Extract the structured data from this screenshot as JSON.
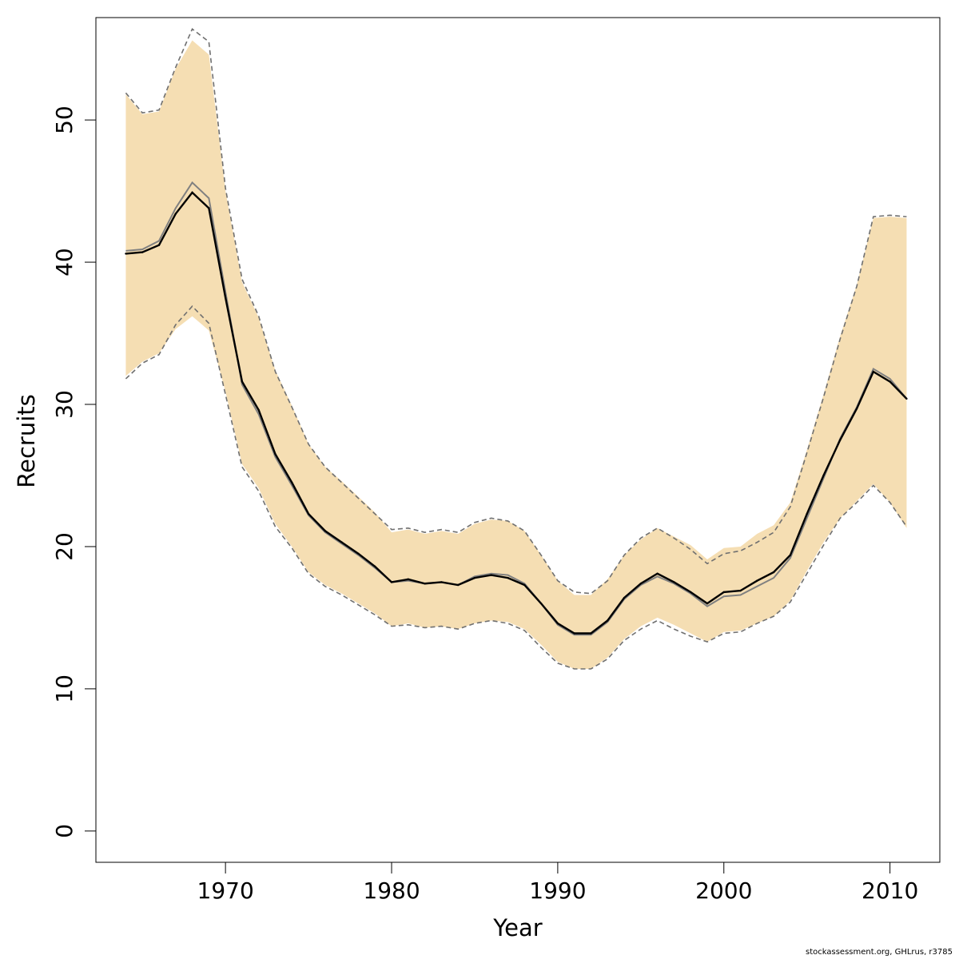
{
  "chart_data": {
    "type": "line",
    "xlabel": "Year",
    "ylabel": "Recruits",
    "xlim": [
      1962.2,
      2013.0
    ],
    "ylim": [
      -2.2,
      57.2
    ],
    "x_ticks": [
      1970,
      1980,
      1990,
      2000,
      2010
    ],
    "y_ticks": [
      0,
      10,
      20,
      30,
      40,
      50
    ],
    "grid": false,
    "legend": "none",
    "colors": {
      "band": "#f5deb3",
      "estimate": "#000000",
      "alt_estimate": "#808080",
      "alt_bounds": "#707070"
    },
    "x": [
      1964,
      1965,
      1966,
      1967,
      1968,
      1969,
      1970,
      1971,
      1972,
      1973,
      1974,
      1975,
      1976,
      1977,
      1978,
      1979,
      1980,
      1981,
      1982,
      1983,
      1984,
      1985,
      1986,
      1987,
      1988,
      1989,
      1990,
      1991,
      1992,
      1993,
      1994,
      1995,
      1996,
      1997,
      1998,
      1999,
      2000,
      2001,
      2002,
      2003,
      2004,
      2005,
      2006,
      2007,
      2008,
      2009,
      2010,
      2011
    ],
    "series": [
      {
        "role": "estimate",
        "values": [
          40.6,
          40.7,
          41.2,
          43.4,
          44.9,
          43.8,
          37.5,
          31.6,
          29.6,
          26.5,
          24.5,
          22.3,
          21.1,
          20.3,
          19.5,
          18.6,
          17.5,
          17.7,
          17.4,
          17.5,
          17.3,
          17.8,
          18.0,
          17.8,
          17.3,
          16.0,
          14.6,
          13.9,
          13.9,
          14.8,
          16.4,
          17.4,
          18.1,
          17.5,
          16.8,
          16.0,
          16.8,
          16.9,
          17.6,
          18.2,
          19.4,
          22.3,
          25.0,
          27.5,
          29.7,
          32.3,
          31.6,
          30.4
        ]
      },
      {
        "role": "estimate_lower_95",
        "values": [
          32.0,
          33.0,
          33.6,
          35.3,
          36.2,
          35.2,
          30.9,
          25.8,
          24.1,
          21.6,
          20.0,
          18.2,
          17.3,
          16.7,
          16.0,
          15.3,
          14.4,
          14.6,
          14.3,
          14.4,
          14.2,
          14.6,
          14.8,
          14.7,
          14.2,
          13.1,
          11.9,
          11.4,
          11.4,
          12.2,
          13.5,
          14.4,
          15.0,
          14.5,
          13.9,
          13.3,
          14.0,
          14.1,
          14.6,
          15.1,
          16.2,
          18.3,
          20.3,
          22.0,
          23.2,
          24.4,
          23.1,
          21.3
        ]
      },
      {
        "role": "estimate_upper_95",
        "values": [
          51.8,
          50.4,
          50.6,
          53.6,
          55.6,
          54.6,
          45.0,
          38.6,
          36.1,
          32.4,
          29.9,
          27.2,
          25.6,
          24.6,
          23.5,
          22.4,
          21.0,
          21.2,
          20.9,
          21.1,
          20.9,
          21.6,
          21.9,
          21.8,
          21.1,
          19.4,
          17.6,
          16.6,
          16.6,
          17.7,
          19.4,
          20.5,
          21.3,
          20.7,
          20.1,
          19.1,
          19.9,
          20.0,
          20.9,
          21.5,
          23.1,
          26.8,
          30.7,
          34.8,
          38.4,
          43.1,
          43.2,
          43.1
        ]
      },
      {
        "role": "alt_estimate",
        "values": [
          40.8,
          40.9,
          41.5,
          43.8,
          45.6,
          44.5,
          37.9,
          31.4,
          29.3,
          26.3,
          24.3,
          22.2,
          21.0,
          20.2,
          19.4,
          18.5,
          17.5,
          17.6,
          17.4,
          17.5,
          17.3,
          17.9,
          18.1,
          18.0,
          17.4,
          16.0,
          14.5,
          13.8,
          13.8,
          14.7,
          16.3,
          17.3,
          17.9,
          17.4,
          16.7,
          15.8,
          16.5,
          16.6,
          17.2,
          17.8,
          19.2,
          22.0,
          24.8,
          27.6,
          29.8,
          32.5,
          31.8,
          30.4
        ]
      },
      {
        "role": "alt_lower_95",
        "values": [
          31.8,
          32.9,
          33.5,
          35.6,
          36.9,
          35.7,
          30.7,
          25.6,
          23.9,
          21.4,
          19.9,
          18.1,
          17.2,
          16.6,
          15.9,
          15.2,
          14.4,
          14.5,
          14.3,
          14.4,
          14.2,
          14.6,
          14.8,
          14.6,
          14.1,
          12.9,
          11.8,
          11.4,
          11.4,
          12.1,
          13.4,
          14.2,
          14.8,
          14.2,
          13.7,
          13.3,
          13.9,
          14.0,
          14.6,
          15.1,
          16.1,
          18.1,
          20.1,
          22.0,
          23.1,
          24.3,
          23.1,
          21.4
        ]
      },
      {
        "role": "alt_upper_95",
        "values": [
          51.9,
          50.5,
          50.7,
          53.7,
          56.4,
          55.5,
          45.2,
          38.8,
          36.2,
          32.3,
          29.8,
          27.2,
          25.6,
          24.5,
          23.4,
          22.3,
          21.2,
          21.3,
          21.0,
          21.2,
          21.0,
          21.7,
          22.0,
          21.8,
          21.1,
          19.4,
          17.6,
          16.8,
          16.7,
          17.6,
          19.4,
          20.6,
          21.3,
          20.6,
          19.8,
          18.8,
          19.5,
          19.7,
          20.3,
          21.0,
          22.8,
          26.6,
          30.5,
          34.6,
          38.3,
          43.2,
          43.3,
          43.2
        ]
      }
    ]
  },
  "footer": "stockassessment.org, GHLrus, r3785"
}
